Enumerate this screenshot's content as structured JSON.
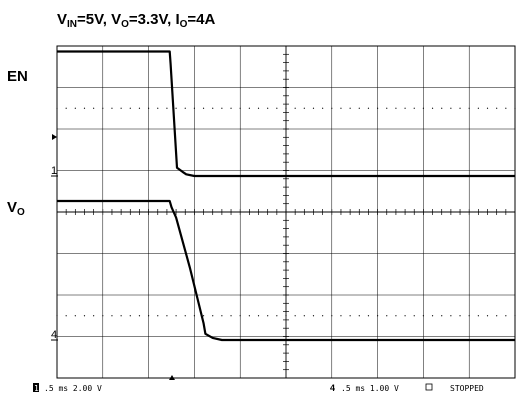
{
  "title": {
    "v_in_prefix": "V",
    "v_in_sub": "IN",
    "v_in_value": "=5V, ",
    "v_o_prefix": "V",
    "v_o_sub": "O",
    "v_o_value": "=3.3V, ",
    "i_o_prefix": "I",
    "i_o_sub": "O",
    "i_o_value": "=4A"
  },
  "channel_labels": {
    "en": "EN",
    "vo_prefix": "V",
    "vo_sub": "O"
  },
  "ground_markers": {
    "ch1": "1",
    "ch4": "4"
  },
  "status_bar": {
    "ch1_num": "1",
    "ch1_settings": ".5 ms 2.00 V",
    "ch4_num": "4",
    "ch4_settings": ".5 ms 1.00 V",
    "state": "STOPPED"
  },
  "chart_data": {
    "type": "line",
    "x_unit": "ms",
    "time_per_div_ms": 0.5,
    "x_divisions": 10,
    "xlim_ms": [
      0,
      5
    ],
    "series": [
      {
        "name": "EN",
        "volts_per_div": 2.0,
        "x_ms": [
          0,
          1.23,
          1.24,
          1.31,
          1.37,
          1.41,
          1.5,
          1.6,
          5.0
        ],
        "y_div": [
          3.0,
          3.0,
          2.7,
          0.2,
          0.1,
          0.04,
          0.0,
          0.0,
          0.0
        ]
      },
      {
        "name": "VO",
        "volts_per_div": 1.0,
        "x_ms": [
          0,
          1.23,
          1.25,
          1.3,
          1.45,
          1.6,
          1.62,
          1.7,
          1.8,
          5.0
        ],
        "y_div": [
          3.35,
          3.35,
          3.2,
          2.95,
          1.75,
          0.4,
          0.15,
          0.05,
          0.0,
          0.0
        ]
      }
    ],
    "grid": true
  }
}
